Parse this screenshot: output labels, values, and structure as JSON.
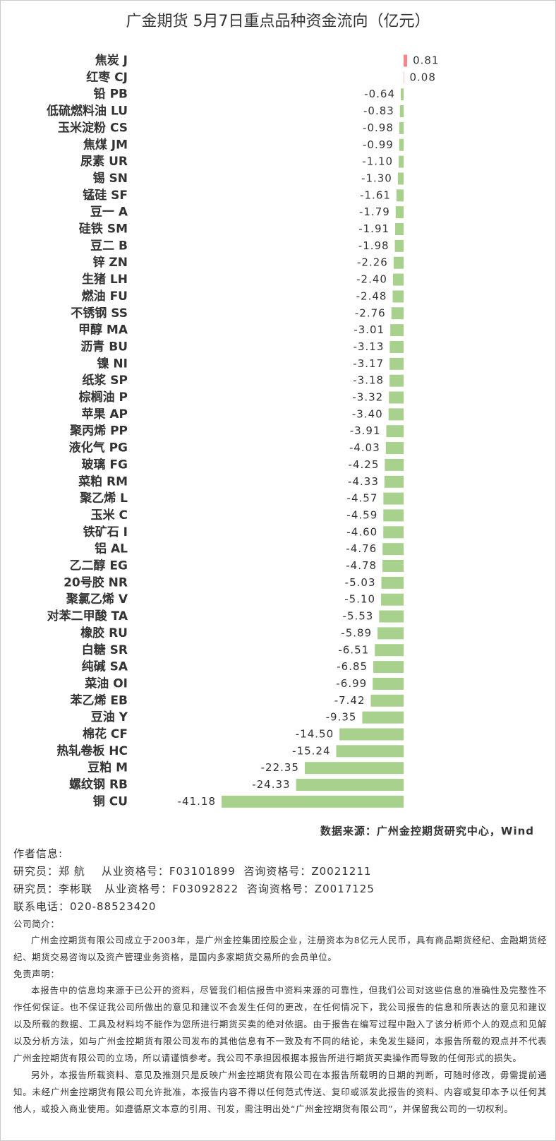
{
  "chart_data": {
    "type": "hbar",
    "title": "广金期货 5月7日重点品种资金流向（亿元）",
    "categories": [
      "焦炭 J",
      "红枣 CJ",
      "铅 PB",
      "低硫燃料油 LU",
      "玉米淀粉 CS",
      "焦煤 JM",
      "尿素 UR",
      "锡 SN",
      "锰硅 SF",
      "豆一 A",
      "硅铁 SM",
      "豆二 B",
      "锌 ZN",
      "生猪 LH",
      "燃油 FU",
      "不锈钢 SS",
      "甲醇 MA",
      "沥青 BU",
      "镍 NI",
      "纸浆 SP",
      "棕榈油 P",
      "苹果 AP",
      "聚丙烯 PP",
      "液化气 PG",
      "玻璃 FG",
      "菜粕 RM",
      "聚乙烯 L",
      "玉米 C",
      "铁矿石 I",
      "铝 AL",
      "乙二醇 EG",
      "20号胶 NR",
      "聚氯乙烯 V",
      "对苯二甲酸 TA",
      "橡胶 RU",
      "白糖 SR",
      "纯碱  SA",
      "菜油 OI",
      "苯乙烯 EB",
      "豆油 Y",
      "棉花 CF",
      "热轧卷板 HC",
      "豆粕 M",
      "螺纹钢 RB",
      "铜 CU"
    ],
    "values": [
      0.81,
      0.08,
      -0.64,
      -0.83,
      -0.98,
      -0.99,
      -1.1,
      -1.3,
      -1.61,
      -1.79,
      -1.91,
      -1.98,
      -2.26,
      -2.4,
      -2.48,
      -2.76,
      -3.01,
      -3.13,
      -3.17,
      -3.18,
      -3.32,
      -3.4,
      -3.91,
      -4.03,
      -4.25,
      -4.33,
      -4.57,
      -4.59,
      -4.6,
      -4.76,
      -4.78,
      -5.03,
      -5.1,
      -5.53,
      -5.89,
      -6.51,
      -6.85,
      -6.99,
      -7.42,
      -9.35,
      -14.5,
      -15.24,
      -22.35,
      -24.33,
      -41.18
    ],
    "value_labels": [
      "0.81",
      "0.08",
      "-0.64",
      "-0.83",
      "-0.98",
      "-0.99",
      "-1.10",
      "-1.30",
      "-1.61",
      "-1.79",
      "-1.91",
      "-1.98",
      "-2.26",
      "-2.40",
      "-2.48",
      "-2.76",
      "-3.01",
      "-3.13",
      "-3.17",
      "-3.18",
      "-3.32",
      "-3.40",
      "-3.91",
      "-4.03",
      "-4.25",
      "-4.33",
      "-4.57",
      "-4.59",
      "-4.60",
      "-4.76",
      "-4.78",
      "-5.03",
      "-5.10",
      "-5.53",
      "-5.89",
      "-6.51",
      "-6.85",
      "-6.99",
      "-7.42",
      "-9.35",
      "-14.50",
      "-15.24",
      "-22.35",
      "-24.33",
      "-41.18"
    ],
    "positive_color": "#f4868b",
    "negative_color": "#a9d18e"
  },
  "footer": {
    "source": "数据来源：广州金控期货研究中心，Wind",
    "author_heading": "作者信息:",
    "researchers": [
      "研究员：郑 航    从业资格号：F03101899  咨询资格号：Z0021211",
      "研究员：李彬联   从业资格号：F03092822  咨询资格号：Z0017125"
    ],
    "phone": "联系电话：020-88523420",
    "company_heading": "公司简介：",
    "company_text": "广州金控期货有限公司成立于2003年，是广州金控集团控股企业，注册资本为8亿元人民币，具有商品期货经纪、金融期货经纪、期货交易咨询以及资产管理业务资格，是国内多家期货交易所的会员单位。",
    "disclaimer_heading": "免责声明：",
    "disclaimer_paragraphs": [
      "本报告中的信息均来源于已公开的资料，尽管我们相信报告中资料来源的可靠性，但我们公司对这些信息的准确性及完整性不作任何保证。也不保证我公司所做出的意见和建议不会发生任何的更改，在任何情况下，我公司报告的信息和所表达的意见和建议以及所载的数据、工具及材料均不能作为您所进行期货买卖的绝对依据。由于报告在编写过程中融入了该分析师个人的观点和见解以及分析方法，如与广州金控期货有限公司发布的其他信息有不一致及有不同的结论，未免发生疑问，本报告所载的观点并不代表广州金控期货有限公司的立场，所以请谨慎参考。我公司不承担因根据本报告所进行期货买卖操作而导致的任何形式的损失。",
      "另外，本报告所载资料、意见及推测只是反映广州金控期货有限公司在本报告所载明的日期的判断，可随时修改，毋需提前通知。未经广州金控期货有限公司允许批准，本报告内容不得以任何范式传送、复印或派发此报告的资料、内容或复印本予以任何其他人，或投入商业使用。如遵循原文本意的引用、刊发，需注明出处“广州金控期货有限公司”，并保留我公司的一切权利。"
    ]
  }
}
